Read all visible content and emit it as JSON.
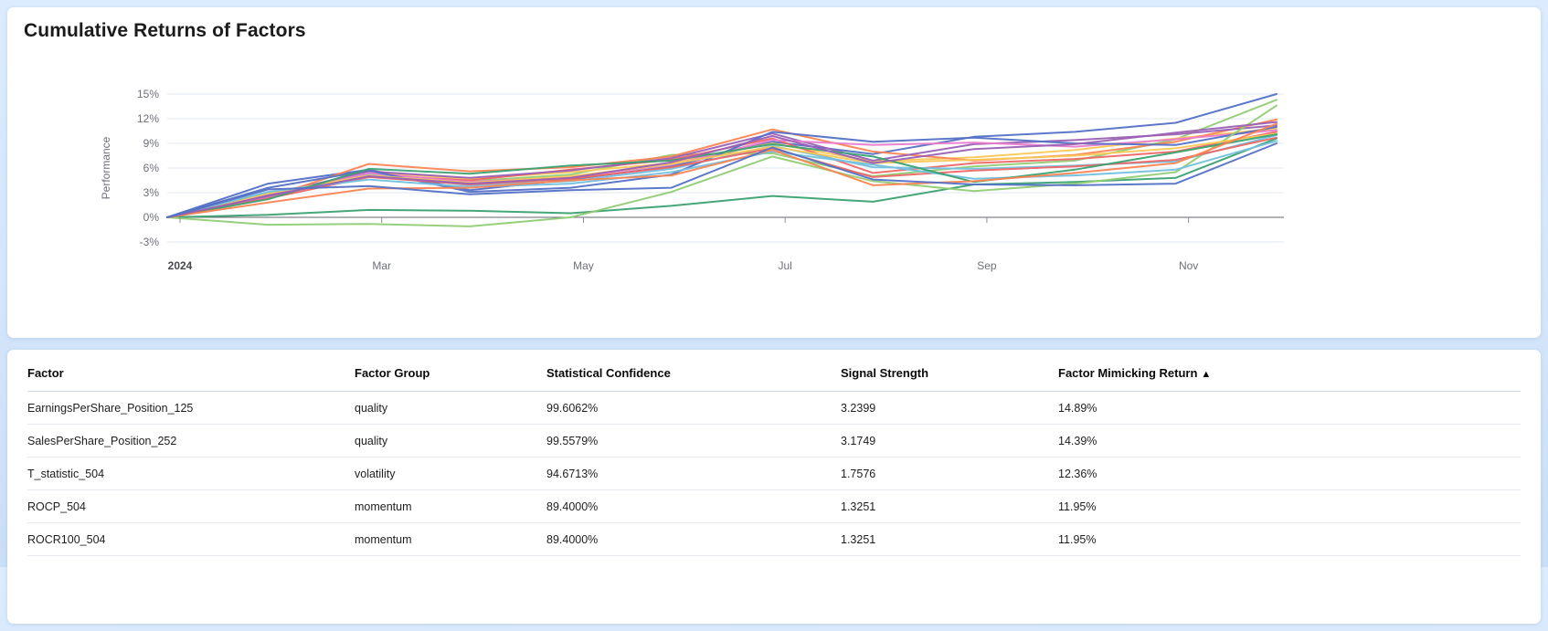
{
  "chart_card": {
    "title": "Cumulative Returns of Factors"
  },
  "chart_data": {
    "type": "line",
    "title": "Cumulative Returns of Factors",
    "xlabel": "",
    "ylabel": "Performance",
    "y_unit": "%",
    "ylim": [
      -3,
      15
    ],
    "y_ticks": [
      15,
      12,
      9,
      6,
      3,
      0,
      -3
    ],
    "x_tick_labels": [
      "2024",
      "Mar",
      "May",
      "Jul",
      "Sep",
      "Nov"
    ],
    "x_tick_positions": [
      0,
      2,
      4,
      6,
      8,
      10
    ],
    "grid": true,
    "legend": false,
    "series": [
      {
        "color": "#5470c6",
        "values": [
          0,
          4.1,
          5.8,
          3.3,
          4.6,
          6.2,
          9.2,
          7.7,
          9.8,
          10.4,
          11.5,
          15.0
        ]
      },
      {
        "color": "#91cc75",
        "values": [
          0,
          3.0,
          5.0,
          4.4,
          5.2,
          7.6,
          7.8,
          5.0,
          6.2,
          6.9,
          9.5,
          14.3
        ]
      },
      {
        "color": "#fac858",
        "values": [
          0,
          2.8,
          5.5,
          4.7,
          5.5,
          6.6,
          9.0,
          6.8,
          7.3,
          8.2,
          9.6,
          10.8
        ]
      },
      {
        "color": "#ee6666",
        "values": [
          0,
          2.6,
          5.2,
          4.5,
          5.8,
          7.0,
          9.6,
          5.4,
          6.6,
          7.1,
          8.0,
          10.4
        ]
      },
      {
        "color": "#73c0de",
        "values": [
          0,
          2.9,
          5.3,
          3.9,
          4.4,
          5.9,
          8.7,
          6.1,
          5.9,
          6.3,
          6.8,
          10.0
        ]
      },
      {
        "color": "#3ba272",
        "values": [
          0,
          0.3,
          0.9,
          0.8,
          0.5,
          1.4,
          2.6,
          1.9,
          4.0,
          4.3,
          4.8,
          9.6
        ]
      },
      {
        "color": "#fc8452",
        "values": [
          0,
          2.4,
          6.5,
          5.6,
          6.1,
          7.4,
          10.7,
          8.0,
          6.9,
          7.6,
          9.2,
          11.9
        ]
      },
      {
        "color": "#9a60b4",
        "values": [
          0,
          2.7,
          5.6,
          4.8,
          5.7,
          7.2,
          10.2,
          6.9,
          8.9,
          9.4,
          10.1,
          11.2
        ]
      },
      {
        "color": "#ea7ccc",
        "values": [
          0,
          2.5,
          5.4,
          4.3,
          4.9,
          6.4,
          9.4,
          8.8,
          9.1,
          8.6,
          9.5,
          10.6
        ]
      },
      {
        "color": "#5470c6",
        "values": [
          0,
          3.6,
          5.7,
          3.1,
          3.6,
          5.2,
          10.4,
          9.2,
          9.7,
          9.0,
          8.8,
          11.0
        ]
      },
      {
        "color": "#91cc75",
        "values": [
          0,
          -0.9,
          -0.8,
          -1.1,
          0.0,
          3.1,
          7.4,
          4.4,
          3.2,
          4.1,
          5.5,
          13.6
        ]
      },
      {
        "color": "#fac858",
        "values": [
          0,
          2.9,
          5.1,
          4.2,
          5.0,
          6.5,
          8.6,
          6.6,
          7.0,
          7.5,
          8.4,
          10.2
        ]
      },
      {
        "color": "#ee6666",
        "values": [
          0,
          2.3,
          4.9,
          4.0,
          4.7,
          6.1,
          8.4,
          4.9,
          5.7,
          6.2,
          7.0,
          9.7
        ]
      },
      {
        "color": "#73c0de",
        "values": [
          0,
          3.1,
          4.6,
          3.7,
          4.1,
          5.5,
          8.0,
          6.4,
          4.7,
          5.1,
          5.8,
          9.3
        ]
      },
      {
        "color": "#3ba272",
        "values": [
          0,
          2.2,
          5.9,
          5.3,
          6.3,
          6.9,
          8.9,
          7.4,
          4.3,
          5.8,
          7.9,
          10.1
        ]
      },
      {
        "color": "#fc8452",
        "values": [
          0,
          1.8,
          3.5,
          3.6,
          4.5,
          5.1,
          8.2,
          3.9,
          4.4,
          5.4,
          6.6,
          11.4
        ]
      },
      {
        "color": "#9a60b4",
        "values": [
          0,
          2.6,
          5.0,
          4.1,
          4.8,
          6.7,
          9.9,
          6.6,
          8.3,
          8.9,
          10.3,
          11.6
        ]
      },
      {
        "color": "#5470c6",
        "values": [
          0,
          3.4,
          3.8,
          2.8,
          3.3,
          3.6,
          8.5,
          4.6,
          4.0,
          3.9,
          4.1,
          9.0
        ]
      }
    ]
  },
  "table": {
    "sort_indicator": "▲",
    "columns": [
      {
        "label": "Factor",
        "sorted": false
      },
      {
        "label": "Factor Group",
        "sorted": false
      },
      {
        "label": "Statistical Confidence",
        "sorted": false
      },
      {
        "label": "Signal Strength",
        "sorted": false
      },
      {
        "label": "Factor Mimicking Return",
        "sorted": true
      }
    ],
    "rows": [
      {
        "factor": "EarningsPerShare_Position_125",
        "factor_group": "quality",
        "statistical_confidence": "99.6062%",
        "signal_strength": "3.2399",
        "factor_mimicking_return": "14.89%"
      },
      {
        "factor": "SalesPerShare_Position_252",
        "factor_group": "quality",
        "statistical_confidence": "99.5579%",
        "signal_strength": "3.1749",
        "factor_mimicking_return": "14.39%"
      },
      {
        "factor": "T_statistic_504",
        "factor_group": "volatility",
        "statistical_confidence": "94.6713%",
        "signal_strength": "1.7576",
        "factor_mimicking_return": "12.36%"
      },
      {
        "factor": "ROCP_504",
        "factor_group": "momentum",
        "statistical_confidence": "89.4000%",
        "signal_strength": "1.3251",
        "factor_mimicking_return": "11.95%"
      },
      {
        "factor": "ROCR100_504",
        "factor_group": "momentum",
        "statistical_confidence": "89.4000%",
        "signal_strength": "1.3251",
        "factor_mimicking_return": "11.95%"
      }
    ]
  }
}
